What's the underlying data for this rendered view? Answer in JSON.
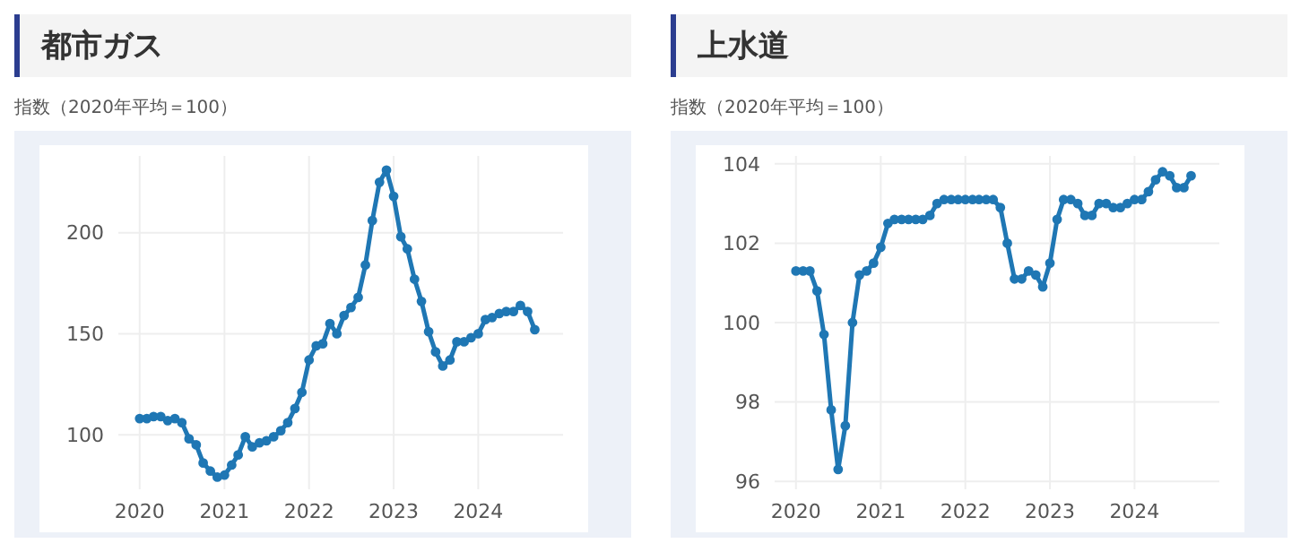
{
  "chart_data": [
    {
      "type": "line",
      "title": "都市ガス",
      "ylabel": "指数（2020年平均＝100）",
      "x": [
        "2020-01",
        "2020-02",
        "2020-03",
        "2020-04",
        "2020-05",
        "2020-06",
        "2020-07",
        "2020-08",
        "2020-09",
        "2020-10",
        "2020-11",
        "2020-12",
        "2021-01",
        "2021-02",
        "2021-03",
        "2021-04",
        "2021-05",
        "2021-06",
        "2021-07",
        "2021-08",
        "2021-09",
        "2021-10",
        "2021-11",
        "2021-12",
        "2022-01",
        "2022-02",
        "2022-03",
        "2022-04",
        "2022-05",
        "2022-06",
        "2022-07",
        "2022-08",
        "2022-09",
        "2022-10",
        "2022-11",
        "2022-12",
        "2023-01",
        "2023-02",
        "2023-03",
        "2023-04",
        "2023-05",
        "2023-06",
        "2023-07",
        "2023-08",
        "2023-09",
        "2023-10",
        "2023-11",
        "2023-12",
        "2024-01",
        "2024-02",
        "2024-03",
        "2024-04",
        "2024-05",
        "2024-06",
        "2024-07",
        "2024-08",
        "2024-09"
      ],
      "series": [
        {
          "color": "#1f77b4",
          "values": [
            108,
            108,
            109,
            109,
            107,
            108,
            106,
            98,
            95,
            86,
            82,
            79,
            80,
            85,
            90,
            99,
            94,
            96,
            97,
            99,
            102,
            106,
            113,
            121,
            137,
            144,
            145,
            155,
            150,
            159,
            163,
            168,
            184,
            206,
            225,
            231,
            218,
            198,
            192,
            177,
            166,
            151,
            141,
            134,
            137,
            146,
            146,
            148,
            150,
            157,
            158,
            160,
            161,
            161,
            164,
            161,
            152
          ]
        }
      ],
      "xlim": [
        "2019-10",
        "2025-01"
      ],
      "xticks": [
        "2020",
        "2021",
        "2022",
        "2023",
        "2024"
      ],
      "ylim": [
        73,
        238
      ],
      "yticks": [
        100,
        150,
        200
      ],
      "grid": true,
      "marker": "circle",
      "line_style": "solid",
      "legend": false
    },
    {
      "type": "line",
      "title": "上水道",
      "ylabel": "指数（2020年平均＝100）",
      "x": [
        "2020-01",
        "2020-02",
        "2020-03",
        "2020-04",
        "2020-05",
        "2020-06",
        "2020-07",
        "2020-08",
        "2020-09",
        "2020-10",
        "2020-11",
        "2020-12",
        "2021-01",
        "2021-02",
        "2021-03",
        "2021-04",
        "2021-05",
        "2021-06",
        "2021-07",
        "2021-08",
        "2021-09",
        "2021-10",
        "2021-11",
        "2021-12",
        "2022-01",
        "2022-02",
        "2022-03",
        "2022-04",
        "2022-05",
        "2022-06",
        "2022-07",
        "2022-08",
        "2022-09",
        "2022-10",
        "2022-11",
        "2022-12",
        "2023-01",
        "2023-02",
        "2023-03",
        "2023-04",
        "2023-05",
        "2023-06",
        "2023-07",
        "2023-08",
        "2023-09",
        "2023-10",
        "2023-11",
        "2023-12",
        "2024-01",
        "2024-02",
        "2024-03",
        "2024-04",
        "2024-05",
        "2024-06",
        "2024-07",
        "2024-08",
        "2024-09"
      ],
      "series": [
        {
          "color": "#1f77b4",
          "values": [
            101.3,
            101.3,
            101.3,
            100.8,
            99.7,
            97.8,
            96.3,
            97.4,
            100.0,
            101.2,
            101.3,
            101.5,
            101.9,
            102.5,
            102.6,
            102.6,
            102.6,
            102.6,
            102.6,
            102.7,
            103.0,
            103.1,
            103.1,
            103.1,
            103.1,
            103.1,
            103.1,
            103.1,
            103.1,
            102.9,
            102.0,
            101.1,
            101.1,
            101.3,
            101.2,
            100.9,
            101.5,
            102.6,
            103.1,
            103.1,
            103.0,
            102.7,
            102.7,
            103.0,
            103.0,
            102.9,
            102.9,
            103.0,
            103.1,
            103.1,
            103.3,
            103.6,
            103.8,
            103.7,
            103.4,
            103.4,
            103.7
          ]
        }
      ],
      "xlim": [
        "2019-10",
        "2025-01"
      ],
      "xticks": [
        "2020",
        "2021",
        "2022",
        "2023",
        "2024"
      ],
      "ylim": [
        95.8,
        104.2
      ],
      "yticks": [
        96,
        98,
        100,
        102,
        104
      ],
      "grid": true,
      "marker": "circle",
      "line_style": "solid",
      "legend": false
    }
  ]
}
